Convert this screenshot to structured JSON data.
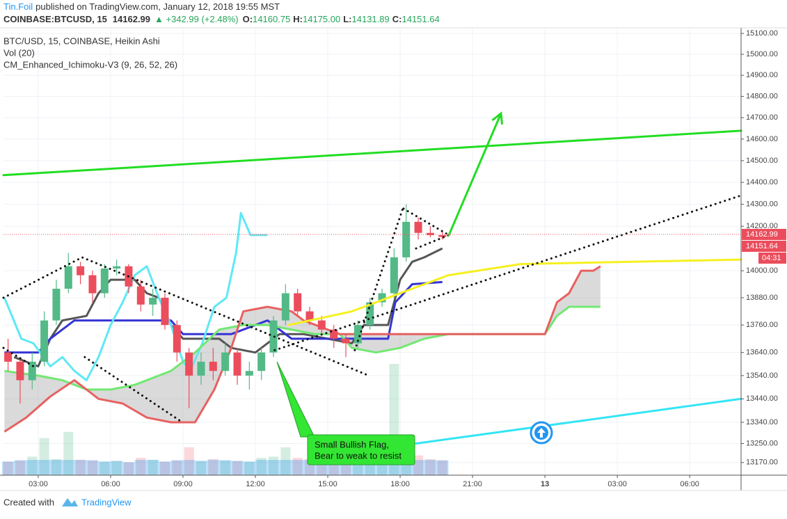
{
  "header": {
    "author": "Tin.Foil",
    "published": "published on TradingView.com, January 12, 2018 19:55 MST",
    "symbol": "COINBASE:BTCUSD, 15",
    "price": "14162.99",
    "change": "▲ +342.99 (+2.48%)",
    "ohlc": [
      [
        "O:",
        "14160.75"
      ],
      [
        "H:",
        "14175.00"
      ],
      [
        "L:",
        "14131.89"
      ],
      [
        "C:",
        "14151.64"
      ]
    ]
  },
  "footer": {
    "created": "Created with",
    "brand": "TradingView"
  },
  "chart_data": {
    "type": "candlestick",
    "legend": [
      "BTC/USD, 15, COINBASE, Heikin Ashi",
      "Vol (20)",
      "CM_Enhanced_Ichimoku-V3 (9, 26, 52, 26)"
    ],
    "log_scale": true,
    "grid": true,
    "up_color": "#53b987",
    "down_color": "#eb4d5c",
    "xlim": [
      1.56,
      32.13
    ],
    "ylim": [
      13117,
      15127
    ],
    "xticks": [
      {
        "value": 3,
        "label": "03:00"
      },
      {
        "value": 6,
        "label": "06:00"
      },
      {
        "value": 9,
        "label": "09:00"
      },
      {
        "value": 12,
        "label": "12:00"
      },
      {
        "value": 15,
        "label": "15:00"
      },
      {
        "value": 18,
        "label": "18:00"
      },
      {
        "value": 21,
        "label": "21:00"
      },
      {
        "value": 24,
        "label": "13"
      },
      {
        "value": 27,
        "label": "03:00"
      },
      {
        "value": 30,
        "label": "06:00"
      }
    ],
    "yticks": [
      {
        "value": 15100,
        "label": "15100.00"
      },
      {
        "value": 15000,
        "label": "15000.00"
      },
      {
        "value": 14900,
        "label": "14900.00"
      },
      {
        "value": 14800,
        "label": "14800.00"
      },
      {
        "value": 14700,
        "label": "14700.00"
      },
      {
        "value": 14600,
        "label": "14600.00"
      },
      {
        "value": 14500,
        "label": "14500.00"
      },
      {
        "value": 14400,
        "label": "14400.00"
      },
      {
        "value": 14300,
        "label": "14300.00"
      },
      {
        "value": 14200,
        "label": "14200.00"
      },
      {
        "value": 14000,
        "label": "14000.00"
      },
      {
        "value": 13880,
        "label": "13880.00"
      },
      {
        "value": 13760,
        "label": "13760.00"
      },
      {
        "value": 13640,
        "label": "13640.00"
      },
      {
        "value": 13540,
        "label": "13540.00"
      },
      {
        "value": 13440,
        "label": "13440.00"
      },
      {
        "value": 13340,
        "label": "13340.00"
      },
      {
        "value": 13250,
        "label": "13250.00"
      },
      {
        "value": 13170,
        "label": "13170.00"
      }
    ],
    "x": [
      1.75,
      2.25,
      2.75,
      3.25,
      3.75,
      4.25,
      4.75,
      5.25,
      5.75,
      6.25,
      6.75,
      7.25,
      7.75,
      8.25,
      8.75,
      9.25,
      9.75,
      10.25,
      10.75,
      11.25,
      11.75,
      12.25,
      12.75,
      13.25,
      13.75,
      14.25,
      14.75,
      15.25,
      15.75,
      16.25,
      16.75,
      17.25,
      17.75,
      18.25,
      18.75,
      19.25,
      19.75
    ],
    "open": [
      13640,
      13600,
      13520,
      13600,
      13780,
      13920,
      14020,
      13980,
      13900,
      14010,
      14020,
      13930,
      13850,
      13880,
      13760,
      13640,
      13540,
      13600,
      13560,
      13640,
      13540,
      13560,
      13640,
      13780,
      13900,
      13820,
      13780,
      13740,
      13700,
      13680,
      13760,
      13860,
      13900,
      14060,
      14220,
      14170,
      14160
    ],
    "high": [
      13700,
      13620,
      13640,
      13820,
      13960,
      14080,
      14040,
      14000,
      14030,
      14050,
      14030,
      13960,
      13920,
      13900,
      13780,
      13660,
      13640,
      13660,
      13680,
      13660,
      13600,
      13660,
      13800,
      13940,
      13920,
      13840,
      13800,
      13760,
      13720,
      13780,
      13880,
      13920,
      14100,
      14300,
      14240,
      14200,
      14180
    ],
    "low": [
      13560,
      13420,
      13480,
      13580,
      13760,
      13900,
      13940,
      13860,
      13880,
      13980,
      13900,
      13820,
      13800,
      13740,
      13600,
      13400,
      13500,
      13520,
      13540,
      13500,
      13480,
      13520,
      13620,
      13760,
      13800,
      13760,
      13720,
      13660,
      13620,
      13660,
      13740,
      13840,
      13880,
      14040,
      14140,
      14150,
      14140
    ],
    "close": [
      13600,
      13520,
      13600,
      13780,
      13920,
      14020,
      13980,
      13900,
      14010,
      14020,
      13930,
      13850,
      13880,
      13760,
      13640,
      13540,
      13600,
      13560,
      13640,
      13540,
      13560,
      13640,
      13780,
      13900,
      13820,
      13780,
      13740,
      13700,
      13680,
      13760,
      13860,
      13900,
      14060,
      14220,
      14170,
      14160,
      14151.64
    ],
    "volume": [
      22,
      24,
      30,
      60,
      26,
      70,
      25,
      24,
      22,
      23,
      21,
      28,
      25,
      22,
      24,
      45,
      23,
      26,
      24,
      23,
      22,
      28,
      30,
      45,
      28,
      26,
      24,
      22,
      23,
      25,
      24,
      30,
      180,
      40,
      32,
      26,
      24
    ],
    "series": [
      {
        "color": "#555555",
        "x": [
          2.0,
          3.0,
          3.5,
          4.0,
          5.0,
          5.5,
          6.0,
          7.0,
          7.5,
          8.0,
          8.5,
          9.0,
          9.5,
          10.5,
          11.0,
          12.0,
          13.0,
          14.0,
          15.0,
          16.0,
          16.5,
          17.5,
          18.0,
          18.5,
          19.0,
          19.75
        ],
        "values": [
          13620,
          13580,
          13700,
          13780,
          13800,
          13900,
          13960,
          13960,
          13900,
          13880,
          13760,
          13700,
          13700,
          13700,
          13660,
          13640,
          13720,
          13720,
          13700,
          13680,
          13760,
          13760,
          13960,
          14040,
          14060,
          14100
        ]
      },
      {
        "color": "#3434d4",
        "x": [
          1.6,
          3.0,
          3.5,
          4.0,
          4.5,
          8.5,
          9.0,
          11.0,
          12.5,
          13.5,
          15.5,
          17.5,
          17.8,
          18.5,
          19.75
        ],
        "values": [
          13640,
          13640,
          13700,
          13740,
          13780,
          13780,
          13720,
          13720,
          13780,
          13700,
          13700,
          13700,
          13860,
          13940,
          13950
        ]
      },
      {
        "color": "#5fe8f5",
        "x": [
          1.6,
          2.3,
          2.8,
          3.5,
          4.0,
          4.5,
          5.0,
          5.5,
          6.0,
          6.5,
          7.0,
          7.5,
          8.0,
          8.5,
          9.0,
          9.3,
          9.8,
          10.3,
          10.8,
          11.2,
          11.4,
          11.8,
          12.5
        ],
        "values": [
          13880,
          13700,
          13680,
          13580,
          13620,
          13560,
          13520,
          13620,
          13760,
          13860,
          13980,
          14020,
          13880,
          13760,
          13600,
          13560,
          13680,
          13840,
          13880,
          14080,
          14260,
          14160,
          14160
        ]
      },
      {
        "color": "#72e872",
        "x": [
          1.6,
          3.0,
          4.0,
          5.0,
          6.0,
          7.0,
          8.5,
          9.5,
          10.5,
          11.5,
          12.5,
          13.5,
          14.5,
          15.5,
          16.0,
          17.0,
          18.0,
          19.0,
          20.0,
          22.5,
          24.0,
          24.5,
          25.0,
          26.3
        ],
        "values": [
          13560,
          13540,
          13520,
          13480,
          13480,
          13500,
          13560,
          13640,
          13740,
          13760,
          13760,
          13740,
          13720,
          13720,
          13660,
          13640,
          13660,
          13700,
          13720,
          13720,
          13720,
          13800,
          13840,
          13840
        ]
      },
      {
        "color": "#e86060",
        "x": [
          1.6,
          2.5,
          3.5,
          4.5,
          5.0,
          5.5,
          6.5,
          7.5,
          8.5,
          9.5,
          10.3,
          11.0,
          11.5,
          12.5,
          13.5,
          14.0,
          14.5,
          15.0,
          15.5,
          20.0,
          24.0,
          24.5,
          25.0,
          25.5,
          26.0,
          26.3
        ],
        "values": [
          13300,
          13360,
          13450,
          13520,
          13480,
          13440,
          13420,
          13360,
          13340,
          13340,
          13480,
          13660,
          13820,
          13840,
          13820,
          13780,
          13760,
          13740,
          13720,
          13720,
          13720,
          13860,
          13900,
          14000,
          14000,
          14020
        ]
      }
    ],
    "drawings": [
      {
        "color": "#22dd22",
        "width": 3,
        "points": [
          [
            1.56,
            14433
          ],
          [
            32.13,
            14639
          ]
        ]
      },
      {
        "color": "#33e5f5",
        "width": 3,
        "points": [
          [
            18.66,
            13250
          ],
          [
            32.13,
            13440
          ]
        ]
      },
      {
        "color": "#f5f020",
        "width": 3,
        "points": [
          [
            13.38,
            13760
          ],
          [
            16.0,
            13820
          ],
          [
            18.0,
            13900
          ],
          [
            20.0,
            13980
          ],
          [
            23.0,
            14030
          ],
          [
            32.13,
            14050
          ]
        ]
      },
      {
        "color": "#111111",
        "width": 3,
        "dash": true,
        "points": [
          [
            1.56,
            13880
          ],
          [
            4.82,
            14060
          ],
          [
            16.7,
            13540
          ]
        ]
      },
      {
        "color": "#111111",
        "width": 3,
        "dash": true,
        "points": [
          [
            1.56,
            13660
          ],
          [
            2.8,
            13580
          ]
        ]
      },
      {
        "color": "#111111",
        "width": 3,
        "dash": true,
        "points": [
          [
            4.93,
            13620
          ],
          [
            8.97,
            13340
          ]
        ]
      },
      {
        "color": "#111111",
        "width": 3,
        "dash": true,
        "points": [
          [
            12.8,
            13650
          ],
          [
            32.13,
            14340
          ]
        ]
      },
      {
        "color": "#111111",
        "width": 3,
        "dash": true,
        "points": [
          [
            16.12,
            13650
          ],
          [
            18.14,
            14290
          ]
        ]
      },
      {
        "color": "#111111",
        "width": 3,
        "dash": true,
        "points": [
          [
            18.14,
            14280
          ],
          [
            20.02,
            14160
          ]
        ]
      },
      {
        "color": "#111111",
        "width": 3,
        "dash": true,
        "points": [
          [
            18.66,
            14100
          ],
          [
            20.02,
            14160
          ]
        ]
      },
      {
        "color": "#22dd22",
        "width": 3,
        "arrow": true,
        "points": [
          [
            20.02,
            14160
          ],
          [
            22.18,
            14720
          ]
        ]
      }
    ],
    "callout": [
      "Small Bullish Flag,",
      "Bear to weak to resist"
    ],
    "price_labels": [
      {
        "value": 14162.99,
        "label": "14162.99"
      },
      {
        "value": 14151.64,
        "label": "14151.64"
      }
    ],
    "countdown": "04:31"
  }
}
